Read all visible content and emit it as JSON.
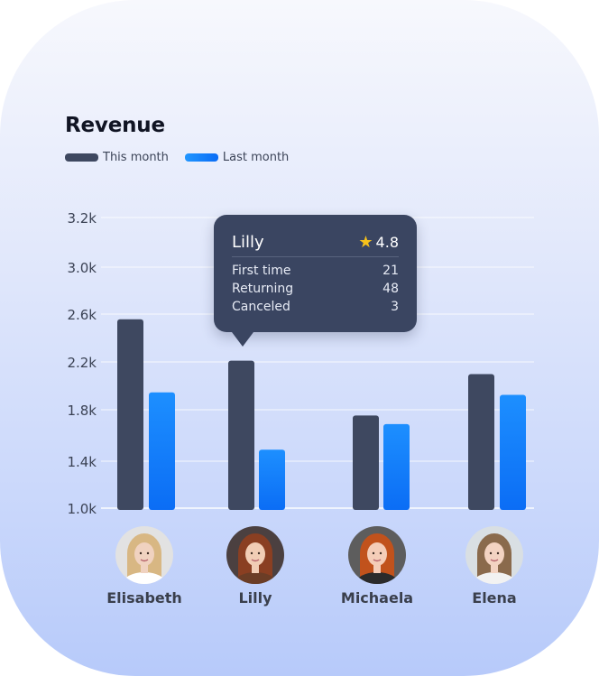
{
  "chart_data": {
    "type": "bar",
    "title": "Revenue",
    "categories": [
      "Elisabeth",
      "Lilly",
      "Michaela",
      "Elena"
    ],
    "series": [
      {
        "name": "This month",
        "color": "#3e4860",
        "values": [
          2.55,
          2.21,
          1.76,
          2.1
        ]
      },
      {
        "name": "Last month",
        "color": "#1582fb",
        "values": [
          1.95,
          1.48,
          1.69,
          1.93
        ]
      }
    ],
    "yticks": [
      "3.2k",
      "3.0k",
      "2.6k",
      "2.2k",
      "1.8k",
      "1.4k",
      "1.0k"
    ],
    "ylim": [
      1.0,
      3.2
    ],
    "unit": "k",
    "grid": true,
    "legend": "top-left"
  },
  "tooltip": {
    "name": "Lilly",
    "rating": "4.8",
    "rating_icon": "star-icon",
    "rows": [
      {
        "label": "First time",
        "value": "21"
      },
      {
        "label": "Returning",
        "value": "48"
      },
      {
        "label": "Canceled",
        "value": "3"
      }
    ]
  },
  "people": [
    {
      "name": "Elisabeth",
      "avatar": {
        "bg": "#e2e2e2",
        "hair": "#d8b783",
        "skin": "#f0d2c0",
        "shirt": "#ffffff"
      }
    },
    {
      "name": "Lilly",
      "avatar": {
        "bg": "#4b4040",
        "hair": "#8a3f22",
        "skin": "#f1cdb5",
        "shirt": "#6b3d26"
      }
    },
    {
      "name": "Michaela",
      "avatar": {
        "bg": "#5d5d5d",
        "hair": "#c1521c",
        "skin": "#f4cdb8",
        "shirt": "#2b2b2b"
      }
    },
    {
      "name": "Elena",
      "avatar": {
        "bg": "#d9dfe3",
        "hair": "#8a6a4c",
        "skin": "#f3d3c2",
        "shirt": "#f2f2f2"
      }
    }
  ]
}
